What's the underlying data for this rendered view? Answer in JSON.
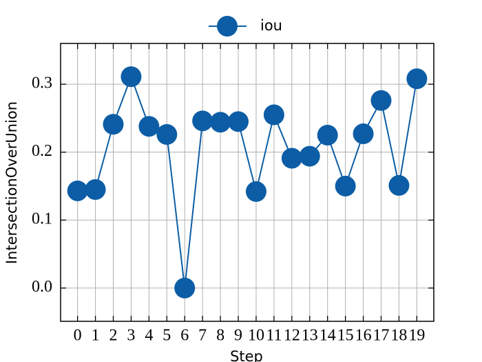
{
  "chart_data": {
    "type": "line",
    "xlabel": "Step",
    "ylabel": "IntersectionOverUnion",
    "x": [
      0,
      1,
      2,
      3,
      4,
      5,
      6,
      7,
      8,
      9,
      10,
      11,
      12,
      13,
      14,
      15,
      16,
      17,
      18,
      19
    ],
    "series": [
      {
        "name": "iou",
        "color": "#0C5DA5",
        "values": [
          0.143,
          0.145,
          0.241,
          0.311,
          0.238,
          0.226,
          0.0,
          0.246,
          0.244,
          0.245,
          0.142,
          0.255,
          0.191,
          0.194,
          0.225,
          0.15,
          0.227,
          0.276,
          0.151,
          0.308
        ]
      }
    ],
    "xlim": [
      -0.95,
      19.95
    ],
    "ylim": [
      -0.049,
      0.36
    ],
    "xticks": [
      0,
      1,
      2,
      3,
      4,
      5,
      6,
      7,
      8,
      9,
      10,
      11,
      12,
      13,
      14,
      15,
      16,
      17,
      18,
      19
    ],
    "yticks": [
      {
        "value": 0.0,
        "label": "0.0"
      },
      {
        "value": 0.1,
        "label": "0.1"
      },
      {
        "value": 0.2,
        "label": "0.2"
      },
      {
        "value": 0.3,
        "label": "0.3"
      }
    ],
    "grid": true,
    "legend": "upper center"
  }
}
